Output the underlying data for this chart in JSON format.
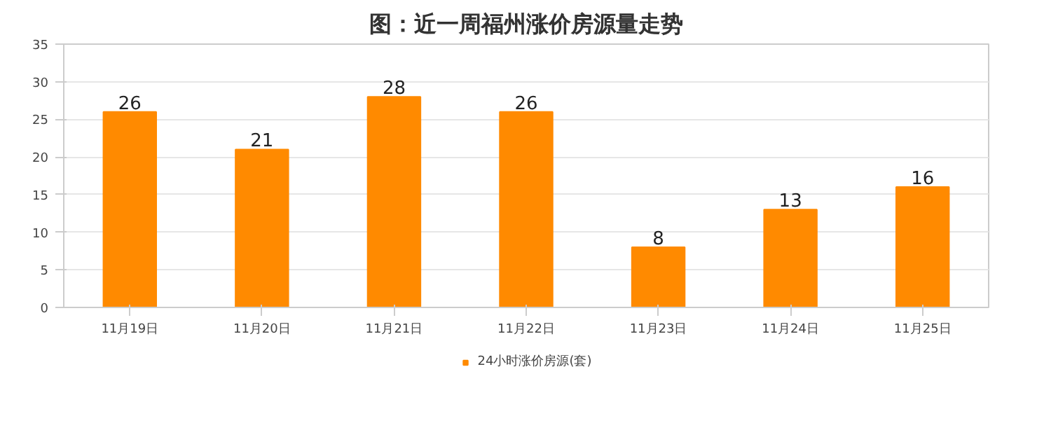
{
  "chart_data": {
    "type": "bar",
    "title": "图：近一周福州涨价房源量走势",
    "categories": [
      "11月19日",
      "11月20日",
      "11月21日",
      "11月22日",
      "11月23日",
      "11月24日",
      "11月25日"
    ],
    "series": [
      {
        "name": "24小时涨价房源(套)",
        "color": "#ff8a00",
        "values": [
          26,
          21,
          28,
          26,
          8,
          13,
          16
        ]
      }
    ],
    "ylim": [
      0,
      35
    ],
    "yticks": [
      0,
      5,
      10,
      15,
      20,
      25,
      30,
      35
    ],
    "grid": "y",
    "legend": "bottom",
    "data_labels": true
  }
}
